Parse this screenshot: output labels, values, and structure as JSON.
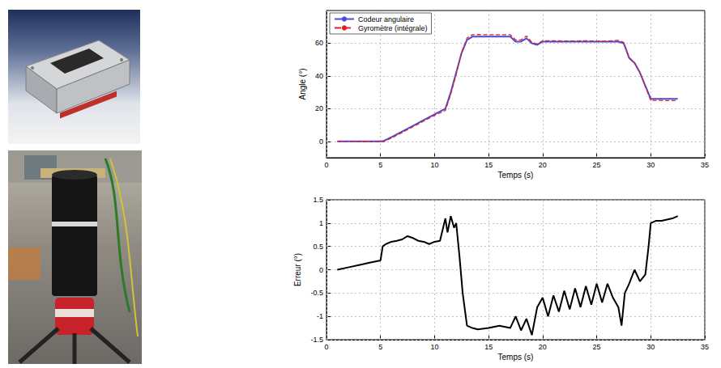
{
  "chart_data": [
    {
      "type": "line",
      "xlabel": "Temps (s)",
      "ylabel": "Angle (°)",
      "x": [
        1,
        2,
        3,
        4,
        5,
        5.3,
        6,
        7,
        8,
        9,
        10,
        11,
        11.5,
        12,
        12.5,
        13,
        13.5,
        14,
        15,
        16,
        17,
        17.5,
        18,
        18.5,
        19,
        19.5,
        20,
        21,
        22,
        23,
        24,
        25,
        26,
        27,
        27.5,
        28,
        28.5,
        29,
        29.5,
        30,
        31,
        32,
        32.5
      ],
      "series": [
        {
          "name": "Codeur angulaire",
          "color": "#4b4bd6",
          "line_style": "solid",
          "values": [
            0,
            0,
            0,
            0,
            0,
            0.3,
            2.5,
            6,
            9.5,
            13,
            16.5,
            20,
            30,
            42,
            54,
            62,
            64,
            64,
            64,
            64,
            64,
            61,
            61,
            63,
            60,
            59,
            61,
            61,
            61,
            61,
            61,
            61,
            61,
            61,
            60,
            51,
            48,
            42,
            34,
            26,
            26,
            26,
            26
          ]
        },
        {
          "name": "Gyromètre (intégrale)",
          "color": "#e0202a",
          "line_style": "dashed",
          "values": [
            0,
            0,
            -0.1,
            -0.1,
            -0.2,
            -0.2,
            2,
            5.4,
            8.9,
            12.4,
            15.9,
            18.9,
            29,
            41,
            54.5,
            63.2,
            65.2,
            65.3,
            65.2,
            65.2,
            65.2,
            62,
            62,
            64.4,
            60.6,
            59.5,
            61.5,
            61.5,
            61.4,
            61.4,
            61.5,
            61.3,
            61.3,
            61.8,
            60.5,
            51.3,
            48,
            42.1,
            33.5,
            25,
            25,
            24.9,
            24.9
          ]
        }
      ],
      "xlim": [
        0,
        35
      ],
      "xticks": [
        0,
        5,
        10,
        15,
        20,
        25,
        30,
        35
      ],
      "ylim": [
        -10,
        80
      ],
      "yticks": [
        0,
        20,
        40,
        60
      ],
      "grid": true,
      "legend": "upper left"
    },
    {
      "type": "line",
      "xlabel": "Temps (s)",
      "ylabel": "Erreur (°)",
      "x": [
        1,
        2,
        3,
        4,
        5,
        5.2,
        5.5,
        6,
        6.5,
        7,
        7.5,
        8,
        8.5,
        9,
        9.5,
        10,
        10.5,
        11,
        11.2,
        11.5,
        11.8,
        12,
        12.3,
        12.6,
        13,
        13.5,
        14,
        15,
        16,
        17,
        17.5,
        18,
        18.5,
        19,
        19.5,
        20,
        20.5,
        21,
        21.5,
        22,
        22.5,
        23,
        23.5,
        24,
        24.5,
        25,
        25.5,
        26,
        26.5,
        27,
        27.3,
        27.6,
        28,
        28.5,
        29,
        29.5,
        29.8,
        30,
        30.5,
        31,
        32,
        32.5
      ],
      "series": [
        {
          "color": "#000000",
          "line_style": "solid",
          "values": [
            0,
            0.05,
            0.1,
            0.15,
            0.2,
            0.5,
            0.55,
            0.6,
            0.62,
            0.65,
            0.72,
            0.68,
            0.62,
            0.6,
            0.55,
            0.6,
            0.62,
            1.1,
            0.8,
            1.15,
            0.9,
            1.0,
            0.3,
            -0.5,
            -1.2,
            -1.25,
            -1.28,
            -1.25,
            -1.2,
            -1.25,
            -1.0,
            -1.3,
            -1.05,
            -1.4,
            -0.8,
            -0.6,
            -1.0,
            -0.55,
            -0.9,
            -0.45,
            -0.85,
            -0.4,
            -0.8,
            -0.35,
            -0.75,
            -0.3,
            -0.7,
            -0.3,
            -0.6,
            -0.8,
            -1.2,
            -0.5,
            -0.3,
            0.0,
            -0.25,
            -0.1,
            0.5,
            1.0,
            1.05,
            1.05,
            1.1,
            1.15
          ]
        }
      ],
      "xlim": [
        0,
        35
      ],
      "xticks": [
        0,
        5,
        10,
        15,
        20,
        25,
        30,
        35
      ],
      "ylim": [
        -1.5,
        1.5
      ],
      "yticks": [
        -1.5,
        -1,
        -0.5,
        0,
        0.5,
        1,
        1.5
      ],
      "grid": true
    }
  ]
}
